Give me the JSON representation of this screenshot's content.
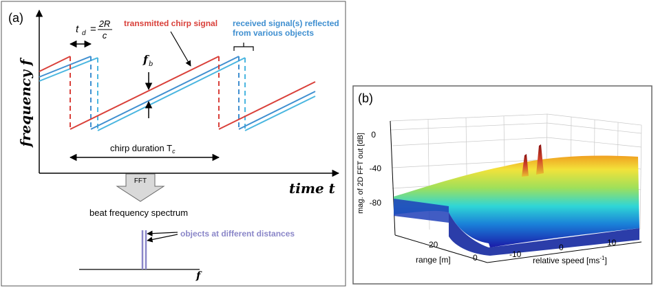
{
  "panel_a": {
    "label": "(a)",
    "y_axis_label": "frequency f",
    "x_axis_label": "time t",
    "delay_formula": {
      "lhs": "t",
      "lhs_sub": "d",
      "eq": "=",
      "num": "2R",
      "den": "c"
    },
    "transmitted_label": "transmitted chirp signal",
    "received_label_line1": "received signal(s) reflected",
    "received_label_line2": "from various objects",
    "beat_label": "f",
    "beat_label_sub": "b",
    "chirp_duration_label": "chirp duration T",
    "chirp_duration_sub": "c",
    "fft_label": "FFT",
    "spectrum_title": "beat frequency spectrum",
    "objects_label": "objects at different distances",
    "spectrum_axis_label": "f",
    "colors": {
      "transmitted": "#d9403a",
      "received_1": "#3f8fd0",
      "received_2": "#4ab6e0",
      "peak": "#8a86c8",
      "label_blue": "#3f8fd0",
      "objects_text": "#8a86c8"
    }
  },
  "panel_b": {
    "label": "(b)",
    "z_axis_label": "mag. of 2D FFT out [dB]",
    "z_ticks": [
      "0",
      "-40",
      "-80"
    ],
    "range_axis_label": "range [m]",
    "range_ticks": [
      "20",
      "0"
    ],
    "speed_axis_label": "relative speed [ms",
    "speed_axis_sup": "-1",
    "speed_axis_end": "]",
    "speed_ticks": [
      "-10",
      "0",
      "10"
    ],
    "colormap": "jet"
  }
}
